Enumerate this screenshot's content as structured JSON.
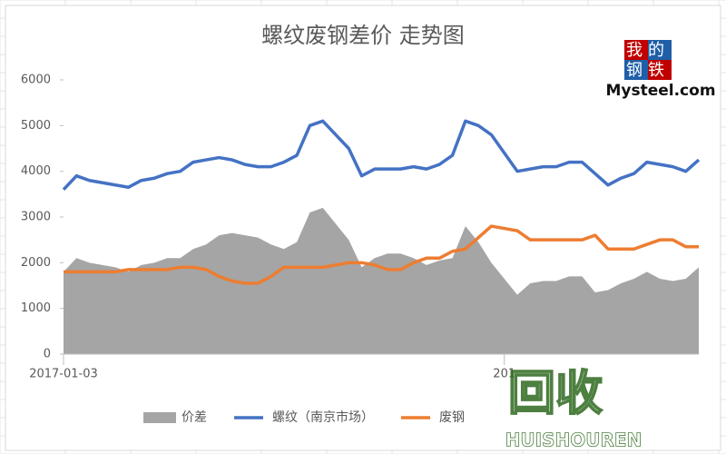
{
  "chart_data": {
    "type": "combo",
    "title": "螺纹废钢差价 走势图",
    "categories": [
      "2017-01-03",
      null,
      null,
      null,
      null,
      null,
      null,
      null,
      null,
      null,
      null,
      null,
      null,
      null,
      null,
      null,
      null,
      null,
      null,
      null,
      null,
      null,
      null,
      null,
      null,
      null,
      null,
      null,
      null,
      null,
      null,
      null,
      null,
      null,
      "201",
      null,
      null,
      null,
      null,
      null,
      null,
      null,
      null,
      null,
      null,
      null,
      null,
      null,
      null,
      null
    ],
    "series": [
      {
        "name": "价差",
        "kind": "area",
        "color": "#a5a5a5",
        "values": [
          1800,
          2100,
          2000,
          1950,
          1900,
          1800,
          1950,
          2000,
          2100,
          2100,
          2300,
          2400,
          2600,
          2650,
          2600,
          2550,
          2400,
          2300,
          2450,
          3100,
          3200,
          2850,
          2500,
          1900,
          2100,
          2200,
          2200,
          2100,
          1950,
          2050,
          2100,
          2800,
          2450,
          2000,
          1650,
          1300,
          1550,
          1600,
          1600,
          1700,
          1700,
          1350,
          1400,
          1550,
          1650,
          1800,
          1650,
          1600,
          1650,
          1900
        ]
      },
      {
        "name": "螺纹（南京市场）",
        "kind": "line",
        "color": "#4472c4",
        "values": [
          3600,
          3900,
          3800,
          3750,
          3700,
          3650,
          3800,
          3850,
          3950,
          4000,
          4200,
          4250,
          4300,
          4250,
          4150,
          4100,
          4100,
          4200,
          4350,
          5000,
          5100,
          4800,
          4500,
          3900,
          4050,
          4050,
          4050,
          4100,
          4050,
          4150,
          4350,
          5100,
          5000,
          4800,
          4400,
          4000,
          4050,
          4100,
          4100,
          4200,
          4200,
          3950,
          3700,
          3850,
          3950,
          4200,
          4150,
          4100,
          4000,
          4250
        ]
      },
      {
        "name": "废钢",
        "kind": "line",
        "color": "#ed7d31",
        "values": [
          1800,
          1800,
          1800,
          1800,
          1800,
          1850,
          1850,
          1850,
          1850,
          1900,
          1900,
          1850,
          1700,
          1600,
          1550,
          1550,
          1700,
          1900,
          1900,
          1900,
          1900,
          1950,
          2000,
          2000,
          1950,
          1850,
          1850,
          2000,
          2100,
          2100,
          2250,
          2300,
          2550,
          2800,
          2750,
          2700,
          2500,
          2500,
          2500,
          2500,
          2500,
          2600,
          2300,
          2300,
          2300,
          2400,
          2500,
          2500,
          2350,
          2350
        ]
      }
    ],
    "ylim": [
      0,
      6000
    ],
    "yticks": [
      0,
      1000,
      2000,
      3000,
      4000,
      5000,
      6000
    ],
    "grid": false
  },
  "logo": {
    "line1": "我的",
    "line2": "钢铁",
    "brand": "Mysteel.com"
  },
  "watermark": {
    "mark": "回收",
    "text": "HUISHOUREN"
  }
}
